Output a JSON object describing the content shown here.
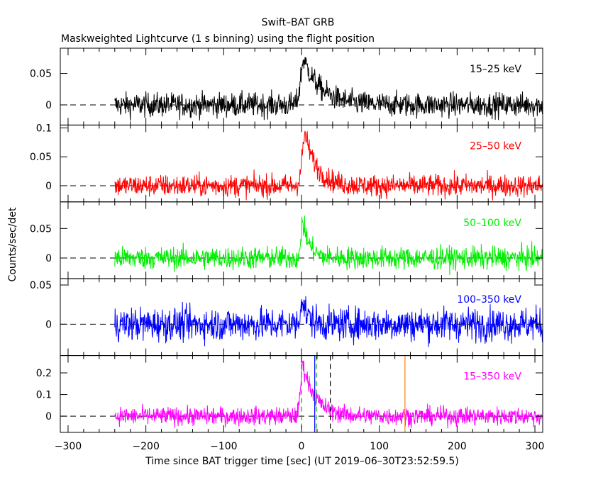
{
  "chart_data": {
    "type": "line",
    "title": "Swift–BAT GRB",
    "subtitle": "Maskweighted Lightcurve (1 s binning) using the flight position",
    "xlabel": "Time since BAT trigger time [sec] (UT 2019–06–30T23:52:59.5)",
    "ylabel": "Counts/sec/det",
    "xlim": [
      -310,
      310
    ],
    "x_ticks": [
      "−300",
      "−200",
      "−100",
      "0",
      "100",
      "200",
      "300"
    ],
    "x_tick_values": [
      -300,
      -200,
      -100,
      0,
      100,
      200,
      300
    ],
    "panels": [
      {
        "label": "15–25 keV",
        "color": "#000000",
        "ylim": [
          -0.032,
          0.09
        ],
        "y_ticks": [
          "0",
          "0.05"
        ],
        "y_tick_values": [
          0,
          0.05
        ],
        "noise": 0.0095,
        "peak": 0.072,
        "peak_time": 3,
        "rise": 4,
        "decay": 22,
        "x_start": -240,
        "x_end": 310
      },
      {
        "label": "25–50 keV",
        "color": "#ff0000",
        "ylim": [
          -0.028,
          0.105
        ],
        "y_ticks": [
          "0",
          "0.05",
          "0.1"
        ],
        "y_tick_values": [
          0,
          0.05,
          0.1
        ],
        "noise": 0.0095,
        "peak": 0.088,
        "peak_time": 5,
        "rise": 4,
        "decay": 15,
        "x_start": -240,
        "x_end": 310
      },
      {
        "label": "50–100 keV",
        "color": "#00ee00",
        "ylim": [
          -0.035,
          0.095
        ],
        "y_ticks": [
          "0",
          "0.05"
        ],
        "y_tick_values": [
          0,
          0.05
        ],
        "noise": 0.0095,
        "peak": 0.065,
        "peak_time": 1,
        "rise": 1.5,
        "decay": 9,
        "x_start": -240,
        "x_end": 310
      },
      {
        "label": "100–350 keV",
        "color": "#0000ff",
        "ylim": [
          -0.04,
          0.058
        ],
        "y_ticks": [
          "0",
          "0.05"
        ],
        "y_tick_values": [
          0,
          0.05
        ],
        "noise": 0.0105,
        "peak": 0.035,
        "peak_time": 0,
        "rise": 1.5,
        "decay": 7,
        "x_start": -240,
        "x_end": 310
      },
      {
        "label": "15–350 keV",
        "color": "#ff00ff",
        "ylim": [
          -0.075,
          0.28
        ],
        "y_ticks": [
          "0",
          "0.1",
          "0.2"
        ],
        "y_tick_values": [
          0,
          0.1,
          0.2
        ],
        "noise": 0.021,
        "peak": 0.24,
        "peak_time": 2,
        "rise": 3,
        "decay": 16,
        "x_start": -240,
        "x_end": 310
      }
    ],
    "markers": [
      {
        "x": 0,
        "color": "#00aa00",
        "style": "dashed"
      },
      {
        "x": 17,
        "color": "#0000ff",
        "style": "solid"
      },
      {
        "x": 19,
        "color": "#00aa00",
        "style": "dashed"
      },
      {
        "x": 37,
        "color": "#000000",
        "style": "dashed"
      },
      {
        "x": 133,
        "color": "#ff8000",
        "style": "solid"
      }
    ],
    "grid": false,
    "legend": "none"
  }
}
